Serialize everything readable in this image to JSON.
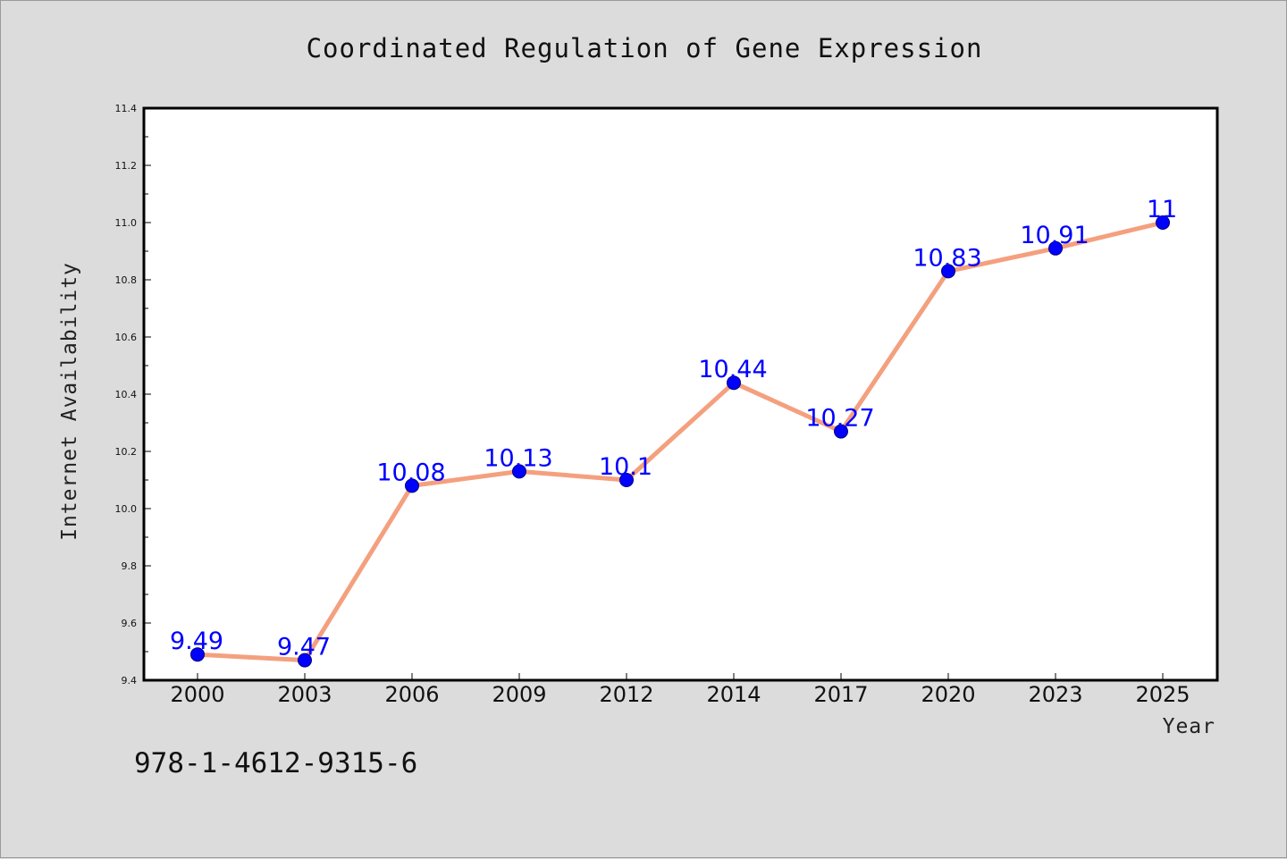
{
  "chart_data": {
    "type": "line",
    "title": "Coordinated Regulation of Gene Expression",
    "xlabel": "Year",
    "ylabel": "Internet Availability",
    "categories": [
      "2000",
      "2003",
      "2006",
      "2009",
      "2012",
      "2014",
      "2017",
      "2020",
      "2023",
      "2025"
    ],
    "series": [
      {
        "values": [
          9.49,
          9.47,
          10.08,
          10.13,
          10.1,
          10.44,
          10.27,
          10.83,
          10.91,
          11
        ],
        "data_labels": [
          "9.49",
          "9.47",
          "10.08",
          "10.13",
          "10.1",
          "10.44",
          "10.27",
          "10.83",
          "10.91",
          "11"
        ]
      }
    ],
    "ylim": [
      9.4,
      11.4
    ],
    "yticks": [
      "9.4",
      "9.6",
      "9.8",
      "10.0",
      "10.2",
      "10.4",
      "10.6",
      "10.8",
      "11.0",
      "11.2",
      "11.4"
    ],
    "grid": false,
    "colors": {
      "line": "#f4a07e",
      "marker": "#0000ff",
      "data_label": "#0000ff",
      "plot_background": "#ffffff",
      "figure_background": "#dcdcdc"
    }
  },
  "footer": {
    "isbn": "978-1-4612-9315-6"
  }
}
